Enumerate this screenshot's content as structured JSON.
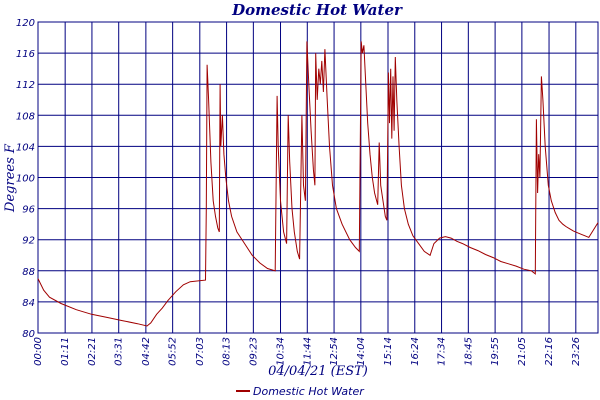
{
  "chart_data": {
    "type": "line",
    "title": "Domestic Hot Water",
    "xlabel": "04/04/21 (EST)",
    "ylabel": "Degrees F",
    "xlim": [
      0,
      1464
    ],
    "ylim": [
      80,
      120
    ],
    "yticks": [
      80,
      84,
      88,
      92,
      96,
      100,
      104,
      108,
      112,
      116,
      120
    ],
    "xtick_values": [
      0,
      71,
      141,
      211,
      282,
      352,
      423,
      493,
      563,
      634,
      704,
      774,
      844,
      915,
      985,
      1055,
      1125,
      1195,
      1265,
      1336,
      1406,
      1464
    ],
    "xtick_labels": [
      "00:00",
      "01:11",
      "02:21",
      "03:31",
      "04:42",
      "05:52",
      "07:03",
      "08:13",
      "09:23",
      "10:34",
      "11:44",
      "12:54",
      "14:04",
      "15:14",
      "16:24",
      "17:34",
      "18:45",
      "19:55",
      "21:05",
      "22:16",
      "23:26",
      ""
    ],
    "grid": true,
    "legend": "bottom-center",
    "colors": {
      "series": "#a00000",
      "grid": "#000080",
      "text": "#000080"
    },
    "series": [
      {
        "name": "Domestic Hot Water",
        "points": [
          [
            0,
            87
          ],
          [
            15,
            85.5
          ],
          [
            30,
            84.6
          ],
          [
            60,
            83.8
          ],
          [
            100,
            83
          ],
          [
            140,
            82.4
          ],
          [
            180,
            82
          ],
          [
            220,
            81.6
          ],
          [
            260,
            81.2
          ],
          [
            285,
            80.9
          ],
          [
            295,
            81.3
          ],
          [
            310,
            82.4
          ],
          [
            325,
            83.2
          ],
          [
            340,
            84.2
          ],
          [
            360,
            85.3
          ],
          [
            380,
            86.2
          ],
          [
            398,
            86.6
          ],
          [
            438,
            86.8
          ],
          [
            440,
            96
          ],
          [
            442,
            114.5
          ],
          [
            446,
            110
          ],
          [
            452,
            102
          ],
          [
            458,
            97
          ],
          [
            464,
            95
          ],
          [
            470,
            93.5
          ],
          [
            474,
            93
          ],
          [
            476,
            112
          ],
          [
            478,
            104
          ],
          [
            482,
            108
          ],
          [
            486,
            103
          ],
          [
            491,
            100
          ],
          [
            498,
            97
          ],
          [
            506,
            95
          ],
          [
            520,
            93
          ],
          [
            540,
            91.5
          ],
          [
            560,
            90
          ],
          [
            580,
            89
          ],
          [
            600,
            88.3
          ],
          [
            620,
            88
          ],
          [
            625,
            110.5
          ],
          [
            628,
            104
          ],
          [
            634,
            97
          ],
          [
            642,
            93
          ],
          [
            650,
            91.5
          ],
          [
            654,
            108
          ],
          [
            658,
            102
          ],
          [
            664,
            96
          ],
          [
            670,
            93
          ],
          [
            678,
            90.5
          ],
          [
            684,
            89.5
          ],
          [
            690,
            108
          ],
          [
            694,
            99
          ],
          [
            699,
            97
          ],
          [
            703,
            117.5
          ],
          [
            708,
            112
          ],
          [
            714,
            106
          ],
          [
            720,
            101
          ],
          [
            724,
            99
          ],
          [
            726,
            116
          ],
          [
            730,
            110
          ],
          [
            734,
            114
          ],
          [
            738,
            112
          ],
          [
            742,
            115
          ],
          [
            746,
            111
          ],
          [
            750,
            116.5
          ],
          [
            756,
            110
          ],
          [
            762,
            104
          ],
          [
            770,
            99
          ],
          [
            780,
            96
          ],
          [
            795,
            94
          ],
          [
            815,
            92
          ],
          [
            830,
            91
          ],
          [
            840,
            90.5
          ],
          [
            845,
            117.5
          ],
          [
            848,
            116
          ],
          [
            852,
            117
          ],
          [
            856,
            113
          ],
          [
            862,
            107
          ],
          [
            868,
            103
          ],
          [
            874,
            100
          ],
          [
            880,
            98
          ],
          [
            888,
            96.5
          ],
          [
            892,
            104.5
          ],
          [
            896,
            99
          ],
          [
            902,
            97
          ],
          [
            908,
            95
          ],
          [
            912,
            94.5
          ],
          [
            916,
            113.5
          ],
          [
            919,
            107
          ],
          [
            922,
            114
          ],
          [
            925,
            105
          ],
          [
            928,
            113
          ],
          [
            931,
            106
          ],
          [
            934,
            115.5
          ],
          [
            938,
            110
          ],
          [
            944,
            104
          ],
          [
            950,
            99
          ],
          [
            958,
            96
          ],
          [
            968,
            94
          ],
          [
            980,
            92.5
          ],
          [
            995,
            91.5
          ],
          [
            1010,
            90.5
          ],
          [
            1025,
            90
          ],
          [
            1035,
            91.5
          ],
          [
            1050,
            92.2
          ],
          [
            1065,
            92.4
          ],
          [
            1080,
            92.2
          ],
          [
            1095,
            91.8
          ],
          [
            1110,
            91.5
          ],
          [
            1130,
            91
          ],
          [
            1150,
            90.6
          ],
          [
            1170,
            90.1
          ],
          [
            1190,
            89.7
          ],
          [
            1210,
            89.2
          ],
          [
            1230,
            88.9
          ],
          [
            1250,
            88.6
          ],
          [
            1270,
            88.2
          ],
          [
            1290,
            88
          ],
          [
            1300,
            87.6
          ],
          [
            1303,
            107.5
          ],
          [
            1306,
            98
          ],
          [
            1309,
            103
          ],
          [
            1312,
            100
          ],
          [
            1316,
            113
          ],
          [
            1320,
            110
          ],
          [
            1326,
            104
          ],
          [
            1334,
            99
          ],
          [
            1342,
            97
          ],
          [
            1352,
            95.5
          ],
          [
            1362,
            94.5
          ],
          [
            1372,
            94
          ],
          [
            1380,
            93.7
          ],
          [
            1390,
            93.4
          ],
          [
            1400,
            93.1
          ],
          [
            1410,
            92.9
          ],
          [
            1420,
            92.7
          ],
          [
            1430,
            92.5
          ],
          [
            1440,
            92.3
          ],
          [
            1464,
            94.2
          ]
        ]
      }
    ]
  }
}
